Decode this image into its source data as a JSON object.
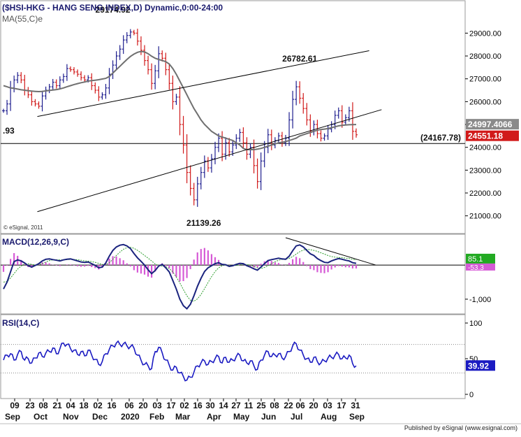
{
  "colors": {
    "up": "#1f1f8f",
    "down": "#d11a1a",
    "ma": "#707070",
    "macd_line": "#1a237e",
    "macd_signal": "#2e9e2e",
    "macd_hist": "#d65ad6",
    "rsi_line": "#1b1bc2",
    "channel": "#000000",
    "ma_tag": "#8a8a8a",
    "price_tag": "#d11a1a",
    "macd_tag": "#22aa22",
    "macd_tag2": "#d65ad6",
    "rsi_tag": "#1b1bc2",
    "frame": "#9a9a9a",
    "dotted": "#888888"
  },
  "chart_data": [
    {
      "type": "candlestick",
      "title": "($HSI-HKG - HANG SENG INDEX,D) Dynamic,0:00-24:00",
      "indicator_label": "MA(55,C)e",
      "y_ticks": [
        "29000.00",
        "28000.00",
        "27000.00",
        "26000.00",
        "25000.00",
        "24000.00",
        "23000.00",
        "22000.00",
        "21000.00"
      ],
      "ylim": [
        20500,
        29900
      ],
      "annotations": [
        "29174.92",
        "26782.61",
        "21139.26",
        "(24167.78)",
        ".93"
      ],
      "horizontal_level": 24167.78,
      "ma_value": "24997.4066",
      "last_price": "24551.18",
      "copyright": "© eSignal, 2011",
      "close": [
        25600,
        25900,
        26600,
        26950,
        27150,
        26950,
        26500,
        26300,
        26000,
        25900,
        25800,
        26250,
        26500,
        26650,
        26850,
        26700,
        26950,
        27100,
        27450,
        27400,
        27300,
        27200,
        27050,
        26950,
        27050,
        26700,
        26500,
        26200,
        26300,
        26600,
        27200,
        27600,
        28000,
        28300,
        28700,
        28900,
        29050,
        29000,
        28650,
        28250,
        27800,
        27400,
        26800,
        27350,
        28100,
        27900,
        27400,
        26800,
        26000,
        26200,
        25000,
        24100,
        22900,
        22200,
        21700,
        22400,
        22900,
        23400,
        23100,
        23500,
        24000,
        24400,
        23700,
        24200,
        23800,
        24100,
        24400,
        24650,
        24200,
        23700,
        24000,
        23200,
        22500,
        23400,
        24000,
        24550,
        24100,
        24300,
        24500,
        24200,
        24400,
        25200,
        26100,
        26650,
        26150,
        25700,
        25200,
        24700,
        25000,
        24600,
        24400,
        24500,
        24800,
        25000,
        25400,
        25600,
        25100,
        25300,
        25600,
        24700,
        24550
      ],
      "ma55": [
        26700,
        26650,
        26600,
        26580,
        26550,
        26520,
        26500,
        26480,
        26460,
        26450,
        26440,
        26450,
        26470,
        26490,
        26510,
        26530,
        26560,
        26600,
        26650,
        26700,
        26750,
        26790,
        26830,
        26860,
        26900,
        26920,
        26940,
        26960,
        26990,
        27020,
        27100,
        27250,
        27400,
        27550,
        27700,
        27850,
        27980,
        28080,
        28160,
        28200,
        28180,
        28100,
        27990,
        27900,
        27850,
        27800,
        27750,
        27650,
        27450,
        27200,
        26900,
        26600,
        26300,
        26000,
        25700,
        25450,
        25200,
        25000,
        24850,
        24700,
        24600,
        24500,
        24450,
        24400,
        24350,
        24300,
        24200,
        24100,
        23950,
        23900,
        23900,
        23900,
        23920,
        23950,
        24000,
        24050,
        24100,
        24150,
        24200,
        24220,
        24250,
        24300,
        24350,
        24400,
        24500,
        24550,
        24600,
        24650,
        24700,
        24750,
        24780,
        24800,
        24820,
        24860,
        24900,
        24940,
        24960,
        24980,
        24990,
        24995,
        24998
      ],
      "channel_upper": {
        "from_x": 4,
        "from_y": 25350,
        "to_x": 64,
        "to_y": 28230
      },
      "channel_lower": {
        "from_x": 4,
        "from_y": 21180,
        "to_x": 67,
        "to_y": 25650
      }
    },
    {
      "type": "line",
      "title": "MACD(12,26,9,C)",
      "y_ticks": [
        "-1,000"
      ],
      "ylim": [
        -1350,
        800
      ],
      "zero_line": 0,
      "tags": [
        "85.1",
        "-53.3"
      ],
      "macd": [
        -700,
        -500,
        -200,
        100,
        150,
        120,
        60,
        -20,
        -60,
        -10,
        40,
        120,
        170,
        180,
        160,
        140,
        120,
        150,
        170,
        180,
        150,
        120,
        90,
        80,
        90,
        40,
        -10,
        -80,
        -60,
        60,
        260,
        430,
        530,
        580,
        600,
        560,
        480,
        340,
        210,
        110,
        0,
        -140,
        -250,
        -160,
        -30,
        20,
        -80,
        -200,
        -450,
        -700,
        -1000,
        -1190,
        -1280,
        -1150,
        -900,
        -620,
        -390,
        -190,
        -80,
        -20,
        40,
        70,
        20,
        10,
        -40,
        -20,
        20,
        50,
        40,
        -20,
        -60,
        -110,
        -150,
        -60,
        40,
        130,
        160,
        180,
        200,
        180,
        170,
        260,
        420,
        560,
        590,
        530,
        430,
        330,
        280,
        190,
        130,
        80,
        70,
        120,
        160,
        190,
        170,
        140,
        120,
        70,
        50
      ],
      "signal": [
        -500,
        -480,
        -380,
        -250,
        -120,
        -30,
        30,
        40,
        20,
        0,
        10,
        40,
        90,
        130,
        150,
        155,
        150,
        150,
        155,
        165,
        165,
        155,
        140,
        125,
        115,
        100,
        80,
        50,
        20,
        10,
        70,
        170,
        280,
        380,
        460,
        510,
        520,
        490,
        430,
        360,
        280,
        200,
        120,
        30,
        -20,
        -30,
        -50,
        -100,
        -200,
        -350,
        -520,
        -720,
        -900,
        -1030,
        -1060,
        -990,
        -860,
        -690,
        -510,
        -340,
        -190,
        -80,
        -20,
        0,
        -10,
        -20,
        -10,
        10,
        20,
        15,
        -5,
        -40,
        -80,
        -100,
        -70,
        -20,
        40,
        100,
        140,
        165,
        175,
        195,
        250,
        320,
        390,
        440,
        460,
        450,
        430,
        400,
        360,
        320,
        280,
        250,
        230,
        220,
        215,
        205,
        190,
        170,
        150
      ],
      "hist": [
        -200,
        -20,
        180,
        350,
        270,
        150,
        30,
        -60,
        -80,
        -10,
        30,
        80,
        80,
        50,
        10,
        -15,
        -30,
        0,
        15,
        15,
        -15,
        -35,
        -50,
        -45,
        -25,
        -60,
        -90,
        -130,
        -80,
        50,
        190,
        260,
        250,
        200,
        140,
        50,
        -40,
        -150,
        -220,
        -250,
        -280,
        -340,
        -370,
        -190,
        -10,
        50,
        -30,
        -100,
        -250,
        -350,
        -480,
        -470,
        -380,
        -120,
        160,
        370,
        470,
        500,
        430,
        320,
        230,
        150,
        40,
        10,
        -30,
        0,
        30,
        40,
        20,
        -35,
        -55,
        -70,
        -70,
        40,
        110,
        150,
        120,
        80,
        60,
        15,
        -5,
        65,
        170,
        240,
        200,
        90,
        -30,
        -120,
        -150,
        -210,
        -230,
        -240,
        -210,
        -130,
        -70,
        -30,
        -45,
        -65,
        -70,
        -100,
        -100
      ],
      "trendline": {
        "from_x": 80,
        "from_y": 800,
        "to_x": 106,
        "to_y": 0
      }
    },
    {
      "type": "line",
      "title": "RSI(14,C)",
      "y_ticks": [
        "100",
        "50",
        "0"
      ],
      "ylim": [
        0,
        100
      ],
      "levels": [
        70,
        30
      ],
      "last_value": "39.92",
      "values": [
        48,
        55,
        57,
        48,
        56,
        60,
        48,
        50,
        44,
        51,
        58,
        53,
        58,
        60,
        65,
        57,
        64,
        72,
        70,
        64,
        62,
        56,
        60,
        54,
        62,
        55,
        49,
        42,
        46,
        57,
        63,
        68,
        72,
        70,
        71,
        68,
        67,
        65,
        55,
        48,
        42,
        40,
        36,
        60,
        66,
        58,
        48,
        41,
        34,
        38,
        30,
        25,
        20,
        24,
        31,
        40,
        44,
        47,
        42,
        46,
        50,
        53,
        44,
        52,
        45,
        48,
        53,
        55,
        47,
        44,
        47,
        40,
        35,
        48,
        55,
        60,
        53,
        55,
        57,
        51,
        53,
        60,
        68,
        71,
        62,
        55,
        50,
        45,
        52,
        46,
        44,
        47,
        51,
        52,
        55,
        56,
        50,
        51,
        55,
        43,
        39.92
      ]
    }
  ],
  "x_axis": {
    "day_ticks": [
      "09",
      "23",
      "08",
      "21",
      "04",
      "18",
      "02",
      "16",
      "06",
      "20",
      "03",
      "17",
      "02",
      "16",
      "30",
      "14",
      "27",
      "11",
      "25",
      "08",
      "22",
      "06",
      "20",
      "03",
      "17",
      "31"
    ],
    "months": [
      "Sep",
      "Oct",
      "Nov",
      "Dec",
      "2020",
      "Feb",
      "Mar",
      "Apr",
      "May",
      "Jun",
      "Jul",
      "Aug",
      "Sep"
    ]
  },
  "footer": "Published by eSignal (www.esignal.com)"
}
